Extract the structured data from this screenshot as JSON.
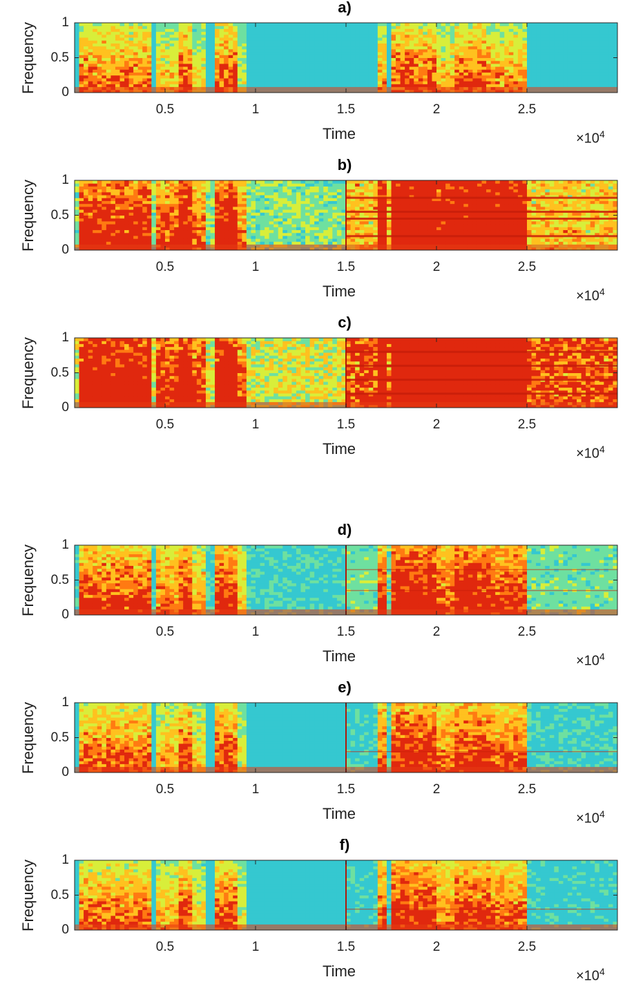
{
  "chart_data": [
    {
      "type": "heatmap",
      "title": "a)",
      "xlabel": "Time",
      "ylabel": "Frequency",
      "x_exponent_base": "×10",
      "x_exponent_power": "4",
      "xlim": [
        0,
        3
      ],
      "ylim": [
        0,
        1
      ],
      "xticks": [
        0.5,
        1,
        1.5,
        2,
        2.5
      ],
      "xtick_labels": [
        "0.5",
        "1",
        "1.5",
        "2",
        "2.5"
      ],
      "yticks": [
        0,
        0.5,
        1
      ],
      "ytick_labels": [
        "0",
        "0.5",
        "1"
      ],
      "colormap": "jet",
      "burst_starts": [
        0.05,
        0.25,
        0.5,
        0.85,
        1.7,
        1.85,
        2.05,
        2.45
      ],
      "burst_ends": [
        0.4,
        0.32,
        0.9,
        0.95,
        1.75,
        2.0,
        2.3,
        2.55
      ]
    },
    {
      "type": "heatmap",
      "title": "b)",
      "xlabel": "Time",
      "ylabel": "Frequency",
      "x_exponent_base": "×10",
      "x_exponent_power": "4",
      "xlim": [
        0,
        3
      ],
      "ylim": [
        0,
        1
      ],
      "xticks": [
        0.5,
        1,
        1.5,
        2,
        2.5
      ],
      "xtick_labels": [
        "0.5",
        "1",
        "1.5",
        "2",
        "2.5"
      ],
      "yticks": [
        0,
        0.5,
        1
      ],
      "ytick_labels": [
        "0",
        "0.5",
        "1"
      ],
      "colormap": "jet",
      "harmonic_start": 1.5,
      "harmonic_freqs": [
        0.2,
        0.45,
        0.55,
        0.75
      ]
    },
    {
      "type": "heatmap",
      "title": "c)",
      "xlabel": "Time",
      "ylabel": "Frequency",
      "x_exponent_base": "×10",
      "x_exponent_power": "4",
      "xlim": [
        0,
        3
      ],
      "ylim": [
        0,
        1
      ],
      "xticks": [
        0.5,
        1,
        1.5,
        2,
        2.5
      ],
      "xtick_labels": [
        "0.5",
        "1",
        "1.5",
        "2",
        "2.5"
      ],
      "yticks": [
        0,
        0.5,
        1
      ],
      "ytick_labels": [
        "0",
        "0.5",
        "1"
      ],
      "colormap": "jet",
      "harmonic_start": 1.5,
      "harmonic_freqs": [
        0.2,
        0.4,
        0.6,
        0.8
      ]
    },
    {
      "type": "heatmap",
      "title": "d)",
      "xlabel": "Time",
      "ylabel": "Frequency",
      "x_exponent_base": "×10",
      "x_exponent_power": "4",
      "xlim": [
        0,
        3
      ],
      "ylim": [
        0,
        1
      ],
      "xticks": [
        0.5,
        1,
        1.5,
        2,
        2.5
      ],
      "xtick_labels": [
        "0.5",
        "1",
        "1.5",
        "2",
        "2.5"
      ],
      "yticks": [
        0,
        0.5,
        1
      ],
      "ytick_labels": [
        "0",
        "0.5",
        "1"
      ],
      "colormap": "jet",
      "harmonic_start": 1.5,
      "harmonic_freqs": [
        0.35,
        0.65
      ]
    },
    {
      "type": "heatmap",
      "title": "e)",
      "xlabel": "Time",
      "ylabel": "Frequency",
      "x_exponent_base": "×10",
      "x_exponent_power": "4",
      "xlim": [
        0,
        3
      ],
      "ylim": [
        0,
        1
      ],
      "xticks": [
        0.5,
        1,
        1.5,
        2,
        2.5
      ],
      "xtick_labels": [
        "0.5",
        "1",
        "1.5",
        "2",
        "2.5"
      ],
      "yticks": [
        0,
        0.5,
        1
      ],
      "ytick_labels": [
        "0",
        "0.5",
        "1"
      ],
      "colormap": "jet",
      "harmonic_start": 1.5,
      "harmonic_freqs": [
        0.3
      ]
    },
    {
      "type": "heatmap",
      "title": "f)",
      "xlabel": "Time",
      "ylabel": "Frequency",
      "x_exponent_base": "×10",
      "x_exponent_power": "4",
      "xlim": [
        0,
        3
      ],
      "ylim": [
        0,
        1
      ],
      "xticks": [
        0.5,
        1,
        1.5,
        2,
        2.5
      ],
      "xtick_labels": [
        "0.5",
        "1",
        "1.5",
        "2",
        "2.5"
      ],
      "yticks": [
        0,
        0.5,
        1
      ],
      "ytick_labels": [
        "0",
        "0.5",
        "1"
      ],
      "colormap": "jet",
      "harmonic_start": 1.5,
      "harmonic_freqs": [
        0.3
      ]
    }
  ]
}
